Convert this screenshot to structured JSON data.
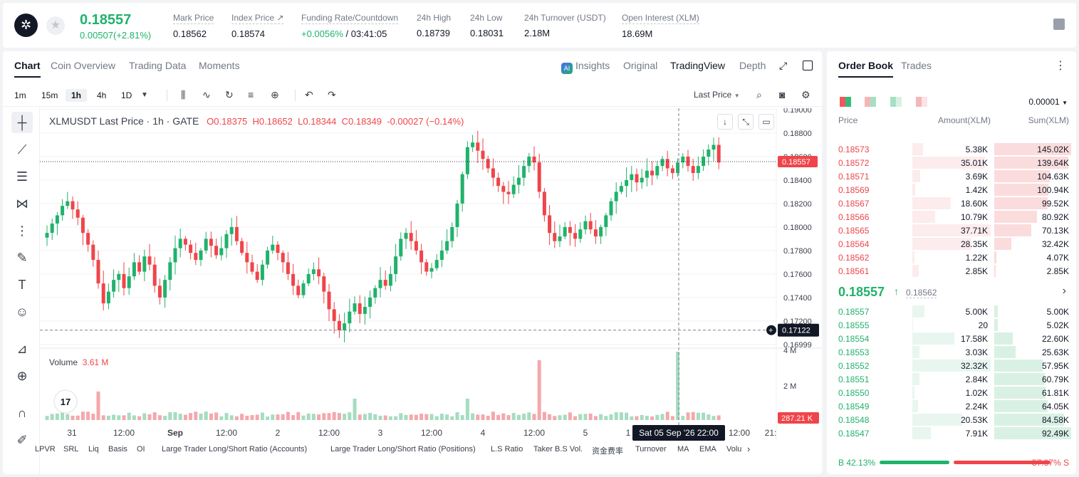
{
  "header": {
    "logo_icon": "stellar-logo-icon",
    "last_price": "0.18557",
    "change": "0.00507(+2.81%)",
    "stats": [
      {
        "label": "Mark Price",
        "value": "0.18562"
      },
      {
        "label": "Index Price ↗",
        "value": "0.18574"
      },
      {
        "label": "Funding Rate/Countdown",
        "value_rate": "+0.0056%",
        "value_countdown": " / 03:41:05"
      },
      {
        "label": "24h High",
        "value": "0.18739"
      },
      {
        "label": "24h Low",
        "value": "0.18031"
      },
      {
        "label": "24h Turnover (USDT)",
        "value": "2.18M"
      },
      {
        "label": "Open Interest (XLM)",
        "value": "18.69M"
      }
    ]
  },
  "chart_tabs": [
    "Chart",
    "Coin Overview",
    "Trading Data",
    "Moments"
  ],
  "view_tabs": {
    "insights": "Insights",
    "original": "Original",
    "tradingview": "TradingView",
    "depth": "Depth"
  },
  "timeframes": [
    "1m",
    "15m",
    "1h",
    "4h",
    "1D"
  ],
  "active_timeframe": "1h",
  "price_source": "Last Price",
  "legend": {
    "symbol": "XLMUSDT Last Price · 1h · GATE",
    "o": "O0.18375",
    "h": "H0.18652",
    "l": "L0.18344",
    "c": "C0.18349",
    "chg": "-0.00027 (−0.14%)"
  },
  "volume_legend": {
    "label": "Volume",
    "value": "3.61 M"
  },
  "indicators": [
    "LPVR",
    "SRL",
    "Liq",
    "Basis",
    "OI",
    "Large Trader Long/Short Ratio (Accounts)",
    "Large Trader Long/Short Ratio (Positions)",
    "L.S Ratio",
    "Taker B.S Vol.",
    "资金费率",
    "Turnover",
    "MA",
    "EMA",
    "Volu"
  ],
  "chart_data": {
    "type": "candlestick",
    "symbol": "XLMUSDT",
    "interval": "1h",
    "price_axis_ticks": [
      "0.19000",
      "0.18800",
      "0.18600",
      "0.18400",
      "0.18200",
      "0.18000",
      "0.17800",
      "0.17600",
      "0.17400",
      "0.17200",
      "0.16999"
    ],
    "volume_axis_ticks": [
      "4 M",
      "2 M"
    ],
    "time_axis_ticks": [
      "31",
      "12:00",
      "Sep",
      "12:00",
      "2",
      "12:00",
      "3",
      "12:00",
      "4",
      "12:00",
      "5",
      "1",
      "12:00",
      "21:"
    ],
    "ylim": [
      0.16999,
      0.19
    ],
    "last_price_label": "0.18557",
    "crosshair_price_label": "0.17122",
    "crosshair_time_label": "Sat 05 Sep '26   22:00",
    "last_volume_label": "287.21 K",
    "closes": [
      0.1795,
      0.1803,
      0.181,
      0.1818,
      0.1822,
      0.1815,
      0.1808,
      0.1795,
      0.1785,
      0.1772,
      0.1752,
      0.1735,
      0.1745,
      0.1755,
      0.176,
      0.1748,
      0.1758,
      0.177,
      0.1762,
      0.1775,
      0.1768,
      0.175,
      0.174,
      0.1755,
      0.177,
      0.1782,
      0.179,
      0.1785,
      0.1778,
      0.1772,
      0.178,
      0.179,
      0.1784,
      0.1776,
      0.1782,
      0.1794,
      0.18,
      0.1788,
      0.1778,
      0.177,
      0.1762,
      0.1755,
      0.1768,
      0.178,
      0.1785,
      0.1778,
      0.177,
      0.176,
      0.175,
      0.1742,
      0.1752,
      0.176,
      0.1764,
      0.1758,
      0.1745,
      0.173,
      0.172,
      0.1712,
      0.1718,
      0.1728,
      0.1735,
      0.1726,
      0.1732,
      0.174,
      0.1748,
      0.1755,
      0.175,
      0.176,
      0.1775,
      0.179,
      0.1795,
      0.1788,
      0.178,
      0.177,
      0.1762,
      0.1765,
      0.1772,
      0.178,
      0.1788,
      0.18,
      0.182,
      0.1845,
      0.1868,
      0.1872,
      0.1865,
      0.1858,
      0.185,
      0.1842,
      0.1835,
      0.183,
      0.1828,
      0.1836,
      0.1842,
      0.1852,
      0.186,
      0.1855,
      0.183,
      0.181,
      0.1795,
      0.1788,
      0.1792,
      0.18,
      0.1795,
      0.179,
      0.1798,
      0.1805,
      0.1798,
      0.1792,
      0.18,
      0.181,
      0.1822,
      0.183,
      0.1835,
      0.184,
      0.1845,
      0.1838,
      0.1842,
      0.1848,
      0.1844,
      0.1852,
      0.1858,
      0.185,
      0.1846,
      0.1855,
      0.186,
      0.1852,
      0.1846,
      0.1852,
      0.186,
      0.1866,
      0.187,
      0.1855
    ]
  },
  "orderbook": {
    "tabs": [
      "Order Book",
      "Trades"
    ],
    "precision": "0.00001",
    "headers": {
      "price": "Price",
      "amount": "Amount(XLM)",
      "sum": "Sum(XLM)"
    },
    "asks": [
      {
        "price": "0.18573",
        "amount": "5.38K",
        "sum": "145.02K",
        "amt_frac": 0.14,
        "sum_frac": 1.0
      },
      {
        "price": "0.18572",
        "amount": "35.01K",
        "sum": "139.64K",
        "amt_frac": 0.93,
        "sum_frac": 0.96
      },
      {
        "price": "0.18571",
        "amount": "3.69K",
        "sum": "104.63K",
        "amt_frac": 0.1,
        "sum_frac": 0.72
      },
      {
        "price": "0.18569",
        "amount": "1.42K",
        "sum": "100.94K",
        "amt_frac": 0.04,
        "sum_frac": 0.7
      },
      {
        "price": "0.18567",
        "amount": "18.60K",
        "sum": "99.52K",
        "amt_frac": 0.49,
        "sum_frac": 0.69
      },
      {
        "price": "0.18566",
        "amount": "10.79K",
        "sum": "80.92K",
        "amt_frac": 0.29,
        "sum_frac": 0.56
      },
      {
        "price": "0.18565",
        "amount": "37.71K",
        "sum": "70.13K",
        "amt_frac": 1.0,
        "sum_frac": 0.48
      },
      {
        "price": "0.18564",
        "amount": "28.35K",
        "sum": "32.42K",
        "amt_frac": 0.75,
        "sum_frac": 0.22
      },
      {
        "price": "0.18562",
        "amount": "1.22K",
        "sum": "4.07K",
        "amt_frac": 0.03,
        "sum_frac": 0.03
      },
      {
        "price": "0.18561",
        "amount": "2.85K",
        "sum": "2.85K",
        "amt_frac": 0.08,
        "sum_frac": 0.02
      }
    ],
    "mid": {
      "price": "0.18557",
      "mark": "0.18562"
    },
    "bids": [
      {
        "price": "0.18557",
        "amount": "5.00K",
        "sum": "5.00K",
        "amt_frac": 0.15,
        "sum_frac": 0.05
      },
      {
        "price": "0.18555",
        "amount": "20",
        "sum": "5.02K",
        "amt_frac": 0.01,
        "sum_frac": 0.05
      },
      {
        "price": "0.18554",
        "amount": "17.58K",
        "sum": "22.60K",
        "amt_frac": 0.54,
        "sum_frac": 0.24
      },
      {
        "price": "0.18553",
        "amount": "3.03K",
        "sum": "25.63K",
        "amt_frac": 0.09,
        "sum_frac": 0.28
      },
      {
        "price": "0.18552",
        "amount": "32.32K",
        "sum": "57.95K",
        "amt_frac": 1.0,
        "sum_frac": 0.63
      },
      {
        "price": "0.18551",
        "amount": "2.84K",
        "sum": "60.79K",
        "amt_frac": 0.09,
        "sum_frac": 0.66
      },
      {
        "price": "0.18550",
        "amount": "1.02K",
        "sum": "61.81K",
        "amt_frac": 0.03,
        "sum_frac": 0.67
      },
      {
        "price": "0.18549",
        "amount": "2.24K",
        "sum": "64.05K",
        "amt_frac": 0.07,
        "sum_frac": 0.69
      },
      {
        "price": "0.18548",
        "amount": "20.53K",
        "sum": "84.58K",
        "amt_frac": 0.64,
        "sum_frac": 0.91
      },
      {
        "price": "0.18547",
        "amount": "7.91K",
        "sum": "92.49K",
        "amt_frac": 0.24,
        "sum_frac": 1.0
      }
    ],
    "buy_ratio": "B 42.13%",
    "sell_ratio": "57.87% S",
    "buy_frac": 0.4213
  },
  "colors": {
    "up": "#20b26c",
    "down": "#ef454a",
    "up_bg": "#e8f6ef",
    "down_bg": "#fdeced"
  }
}
